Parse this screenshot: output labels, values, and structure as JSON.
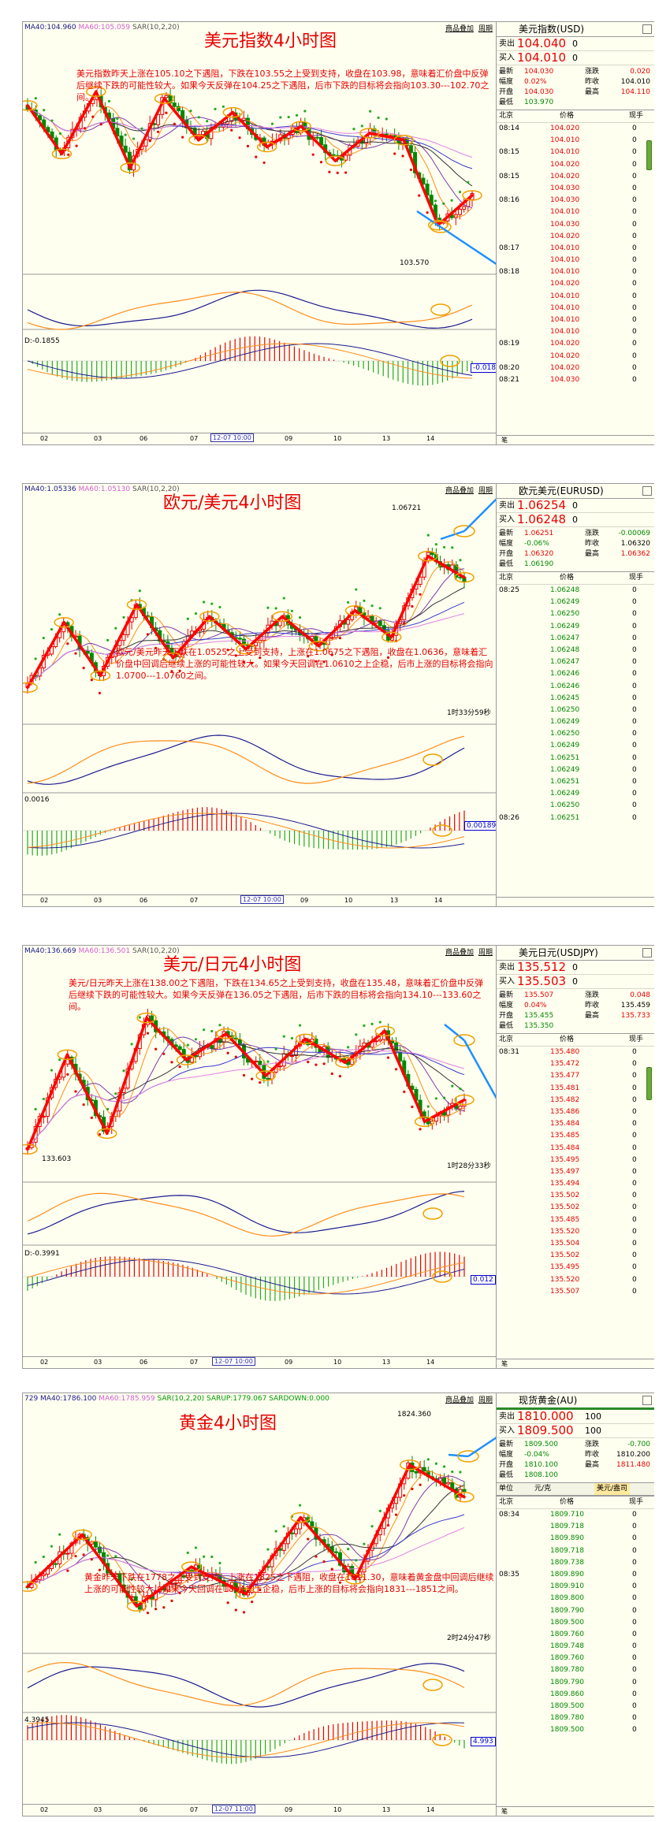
{
  "panels": [
    {
      "ma": {
        "ma40": "MA40:104.960",
        "ma60": "MA60:105.059",
        "sar": "SAR(10,2,20)"
      },
      "buttons": [
        "商品叠加",
        "周期"
      ],
      "title": "美元指数4小时图",
      "description": "美元指数昨天上涨在105.10之下遇阻，下跌在103.55之上受到支持，收盘在103.98，意味着汇价盘中反弹后继续下跌的可能性较大。如果今天反弹在104.25之下遇阻，后市下跌的目标将会指向103.30---102.70之间。",
      "price_label": "103.570",
      "timer": "",
      "macd_label": "D:-0.1855",
      "macd_value": "-0.018",
      "x_ticks": [
        "02",
        "03",
        "06",
        "07",
        "09",
        "10",
        "13",
        "14"
      ],
      "x_highlight": "12-07 10:00",
      "quote": {
        "name": "美元指数(USD)",
        "sell_label": "卖出",
        "sell": "104.040",
        "sell_lot": "0",
        "buy_label": "买入",
        "buy": "104.010",
        "buy_lot": "0",
        "stats": [
          [
            "最新",
            "104.030",
            "涨跌",
            "0.020"
          ],
          [
            "幅度",
            "0.02%",
            "昨收",
            "104.010"
          ],
          [
            "开盘",
            "104.030",
            "最高",
            "104.110"
          ],
          [
            "最低",
            "103.970",
            "",
            ""
          ]
        ],
        "tick_header": [
          "北京",
          "价格",
          "现手"
        ],
        "ticks": [
          [
            "08:14",
            "104.020",
            "0"
          ],
          [
            "",
            "104.010",
            "0"
          ],
          [
            "08:15",
            "104.010",
            "0"
          ],
          [
            "",
            "104.020",
            "0"
          ],
          [
            "08:15",
            "104.020",
            "0"
          ],
          [
            "",
            "104.030",
            "0"
          ],
          [
            "08:16",
            "104.030",
            "0"
          ],
          [
            "",
            "104.010",
            "0"
          ],
          [
            "",
            "104.030",
            "0"
          ],
          [
            "",
            "104.020",
            "0"
          ],
          [
            "08:17",
            "104.010",
            "0"
          ],
          [
            "",
            "104.010",
            "0"
          ],
          [
            "08:18",
            "104.010",
            "0"
          ],
          [
            "",
            "104.020",
            "0"
          ],
          [
            "",
            "104.010",
            "0"
          ],
          [
            "",
            "104.010",
            "0"
          ],
          [
            "",
            "104.010",
            "0"
          ],
          [
            "",
            "104.010",
            "0"
          ],
          [
            "08:19",
            "104.020",
            "0"
          ],
          [
            "",
            "104.020",
            "0"
          ],
          [
            "08:20",
            "104.020",
            "0"
          ],
          [
            "08:21",
            "104.030",
            "0"
          ]
        ]
      }
    },
    {
      "ma": {
        "ma40": "MA40:1.05336",
        "ma60": "MA60:1.05130",
        "sar": "SAR(10,2,20)"
      },
      "buttons": [
        "商品叠加",
        "周期"
      ],
      "title": "欧元/美元4小时图",
      "description": "欧元/美元昨天下跌在1.0525之上受到支持，上涨在1.0675之下遇阻，收盘在1.0636，意味着汇价盘中回调后继续上涨的可能性较大。如果今天回调在1.0610之上企稳，后市上涨的目标将会指向1.0700---1.0760之间。",
      "price_label": "1.06721",
      "timer": "1时33分59秒",
      "macd_label": "0.0016",
      "macd_value": "0.00189",
      "x_ticks": [
        "02",
        "03",
        "06",
        "07",
        "09",
        "10",
        "13",
        "14"
      ],
      "x_highlight": "12-07 10:00",
      "quote": {
        "name": "欧元美元(EURUSD)",
        "sell_label": "卖出",
        "sell": "1.06254",
        "sell_lot": "0",
        "buy_label": "买入",
        "buy": "1.06248",
        "buy_lot": "0",
        "stats": [
          [
            "最新",
            "1.06251",
            "涨跌",
            "-0.00069"
          ],
          [
            "幅度",
            "-0.06%",
            "昨收",
            "1.06320"
          ],
          [
            "开盘",
            "1.06320",
            "最高",
            "1.06362"
          ],
          [
            "最低",
            "1.06190",
            "",
            ""
          ]
        ],
        "tick_header": [
          "北京",
          "价格",
          "现手"
        ],
        "ticks": [
          [
            "08:25",
            "1.06248",
            "0"
          ],
          [
            "",
            "1.06249",
            "0"
          ],
          [
            "",
            "1.06250",
            "0"
          ],
          [
            "",
            "1.06249",
            "0"
          ],
          [
            "",
            "1.06247",
            "0"
          ],
          [
            "",
            "1.06248",
            "0"
          ],
          [
            "",
            "1.06247",
            "0"
          ],
          [
            "",
            "1.06246",
            "0"
          ],
          [
            "",
            "1.06246",
            "0"
          ],
          [
            "",
            "1.06245",
            "0"
          ],
          [
            "",
            "1.06250",
            "0"
          ],
          [
            "",
            "1.06249",
            "0"
          ],
          [
            "",
            "1.06250",
            "0"
          ],
          [
            "",
            "1.06249",
            "0"
          ],
          [
            "",
            "1.06251",
            "0"
          ],
          [
            "",
            "1.06249",
            "0"
          ],
          [
            "",
            "1.06251",
            "0"
          ],
          [
            "",
            "1.06249",
            "0"
          ],
          [
            "",
            "1.06250",
            "0"
          ],
          [
            "08:26",
            "1.06251",
            "0"
          ]
        ]
      }
    },
    {
      "ma": {
        "ma40": "MA40:136.669",
        "ma60": "MA60:136.501",
        "sar": "SAR(10,2,20)"
      },
      "buttons": [
        "商品叠加",
        "周期"
      ],
      "title": "美元/日元4小时图",
      "description": "美元/日元昨天上涨在138.00之下遇阻，下跌在134.65之上受到支持，收盘在135.48，意味着汇价盘中反弹后继续下跌的可能性较大。如果今天反弹在136.05之下遇阻，后市下跌的目标将会指向134.10---133.60之间。",
      "price_label": "133.603",
      "timer": "1时28分33秒",
      "macd_label": "D:-0.3991",
      "macd_value": "0.012",
      "x_ticks": [
        "02",
        "03",
        "06",
        "07",
        "09",
        "10",
        "13",
        "14"
      ],
      "x_highlight": "12-07 10:00",
      "quote": {
        "name": "美元日元(USDJPY)",
        "sell_label": "卖出",
        "sell": "135.512",
        "sell_lot": "0",
        "buy_label": "买入",
        "buy": "135.503",
        "buy_lot": "0",
        "stats": [
          [
            "最新",
            "135.507",
            "涨跌",
            "0.048"
          ],
          [
            "幅度",
            "0.04%",
            "昨收",
            "135.459"
          ],
          [
            "开盘",
            "135.455",
            "最高",
            "135.733"
          ],
          [
            "最低",
            "135.350",
            "",
            ""
          ]
        ],
        "tick_header": [
          "北京",
          "价格",
          "现手"
        ],
        "ticks": [
          [
            "08:31",
            "135.480",
            "0"
          ],
          [
            "",
            "135.472",
            "0"
          ],
          [
            "",
            "135.477",
            "0"
          ],
          [
            "",
            "135.481",
            "0"
          ],
          [
            "",
            "135.482",
            "0"
          ],
          [
            "",
            "135.486",
            "0"
          ],
          [
            "",
            "135.484",
            "0"
          ],
          [
            "",
            "135.485",
            "0"
          ],
          [
            "",
            "135.484",
            "0"
          ],
          [
            "",
            "135.495",
            "0"
          ],
          [
            "",
            "135.497",
            "0"
          ],
          [
            "",
            "135.494",
            "0"
          ],
          [
            "",
            "135.502",
            "0"
          ],
          [
            "",
            "135.502",
            "0"
          ],
          [
            "",
            "135.485",
            "0"
          ],
          [
            "",
            "135.520",
            "0"
          ],
          [
            "",
            "135.504",
            "0"
          ],
          [
            "",
            "135.502",
            "0"
          ],
          [
            "",
            "135.495",
            "0"
          ],
          [
            "",
            "135.520",
            "0"
          ],
          [
            "",
            "135.507",
            "0"
          ]
        ]
      }
    },
    {
      "ma": {
        "ma40": "729 MA40:1786.100",
        "ma60": "MA60:1785.959",
        "sar": "SAR(10,2,20) SARUP:1779.067 SARDOWN:0.000"
      },
      "buttons": [
        "商品叠加",
        "周期"
      ],
      "title": "黄金4小时图",
      "description": "黄金昨天下跌在1778之上受到支持，上涨在1825之下遇阻，收盘在1811.30，意味着黄金盘中回调后继续上涨的可能性较大。如果今天回调在1804之上企稳，后市上涨的目标将会指向1831---1851之间。",
      "price_label": "1824.360",
      "timer": "2时24分47秒",
      "macd_label": "4.3945",
      "macd_value": "4.993",
      "x_ticks": [
        "02",
        "03",
        "06",
        "07",
        "09",
        "10",
        "13",
        "14"
      ],
      "x_highlight": "12-07 11:00",
      "quote": {
        "name": "现货黄金(AU)",
        "sell_label": "卖出",
        "sell": "1810.000",
        "sell_lot": "100",
        "buy_label": "买入",
        "buy": "1809.500",
        "buy_lot": "100",
        "stats": [
          [
            "最新",
            "1809.500",
            "涨跌",
            "-0.700"
          ],
          [
            "幅度",
            "-0.04%",
            "昨收",
            "1810.200"
          ],
          [
            "开盘",
            "1810.100",
            "最高",
            "1811.480"
          ],
          [
            "最低",
            "1808.100",
            "",
            ""
          ]
        ],
        "unit_label": "单位",
        "unit": "元/克",
        "unit_sel": "美元/盎司",
        "tick_header": [
          "北京",
          "价格",
          "现手"
        ],
        "ticks": [
          [
            "08:34",
            "1809.710",
            "0"
          ],
          [
            "",
            "1809.718",
            "0"
          ],
          [
            "",
            "1809.890",
            "0"
          ],
          [
            "",
            "1809.718",
            "0"
          ],
          [
            "",
            "1809.738",
            "0"
          ],
          [
            "08:35",
            "1809.890",
            "0"
          ],
          [
            "",
            "1809.910",
            "0"
          ],
          [
            "",
            "1809.800",
            "0"
          ],
          [
            "",
            "1809.790",
            "0"
          ],
          [
            "",
            "1809.500",
            "0"
          ],
          [
            "",
            "1809.760",
            "0"
          ],
          [
            "",
            "1809.748",
            "0"
          ],
          [
            "",
            "1809.760",
            "0"
          ],
          [
            "",
            "1809.780",
            "0"
          ],
          [
            "",
            "1809.790",
            "0"
          ],
          [
            "",
            "1809.860",
            "0"
          ],
          [
            "",
            "1809.500",
            "0"
          ],
          [
            "",
            "1809.780",
            "0"
          ],
          [
            "",
            "1809.500",
            "0"
          ]
        ]
      }
    }
  ],
  "chart_data": [
    {
      "type": "candlestick",
      "title": "美元指数4小时图",
      "symbol": "美元指数(USD)",
      "x": [
        "02",
        "03",
        "06",
        "07",
        "09",
        "10",
        "13",
        "14"
      ],
      "swing_points": [
        105.3,
        104.6,
        105.5,
        104.4,
        105.4,
        104.8,
        105.2,
        104.7,
        105.0,
        104.5,
        104.9,
        104.8,
        103.57,
        104.0
      ],
      "marked_low": 103.57,
      "projection_target": [
        103.3,
        102.7
      ],
      "colors": {
        "up": "#e60000",
        "down": "#008800",
        "arrow": "#ff0000",
        "projection": "#1e90ff"
      }
    },
    {
      "type": "candlestick",
      "title": "欧元/美元4小时图",
      "symbol": "欧元美元(EURUSD)",
      "x": [
        "02",
        "03",
        "06",
        "07",
        "09",
        "10",
        "13",
        "14"
      ],
      "swing_points": [
        1.045,
        1.056,
        1.047,
        1.059,
        1.05,
        1.057,
        1.0515,
        1.057,
        1.052,
        1.058,
        1.0535,
        1.0672,
        1.0636
      ],
      "marked_high": 1.06721,
      "projection_target": [
        1.07,
        1.076
      ],
      "colors": {
        "up": "#e60000",
        "down": "#008800",
        "arrow": "#ff0000",
        "projection": "#1e90ff"
      }
    },
    {
      "type": "candlestick",
      "title": "美元/日元4小时图",
      "symbol": "美元日元(USDJPY)",
      "x": [
        "02",
        "03",
        "06",
        "07",
        "09",
        "10",
        "13",
        "14"
      ],
      "swing_points": [
        133.6,
        137.2,
        134.2,
        138.6,
        137.0,
        138.0,
        136.4,
        137.8,
        136.9,
        138.1,
        134.65,
        135.48
      ],
      "marked_low": 133.603,
      "projection_target": [
        134.1,
        133.6
      ],
      "colors": {
        "up": "#e60000",
        "down": "#008800",
        "arrow": "#ff0000",
        "projection": "#1e90ff"
      }
    },
    {
      "type": "candlestick",
      "title": "黄金4小时图",
      "symbol": "现货黄金(AU)",
      "x": [
        "02",
        "03",
        "06",
        "07",
        "09",
        "10",
        "13",
        "14"
      ],
      "swing_points": [
        1775,
        1796,
        1767,
        1783,
        1772,
        1803,
        1778,
        1824.36,
        1811.3
      ],
      "marked_high": 1824.36,
      "projection_target": [
        1831,
        1851
      ],
      "colors": {
        "up": "#e60000",
        "down": "#008800",
        "arrow": "#ff0000",
        "projection": "#1e90ff"
      }
    }
  ]
}
